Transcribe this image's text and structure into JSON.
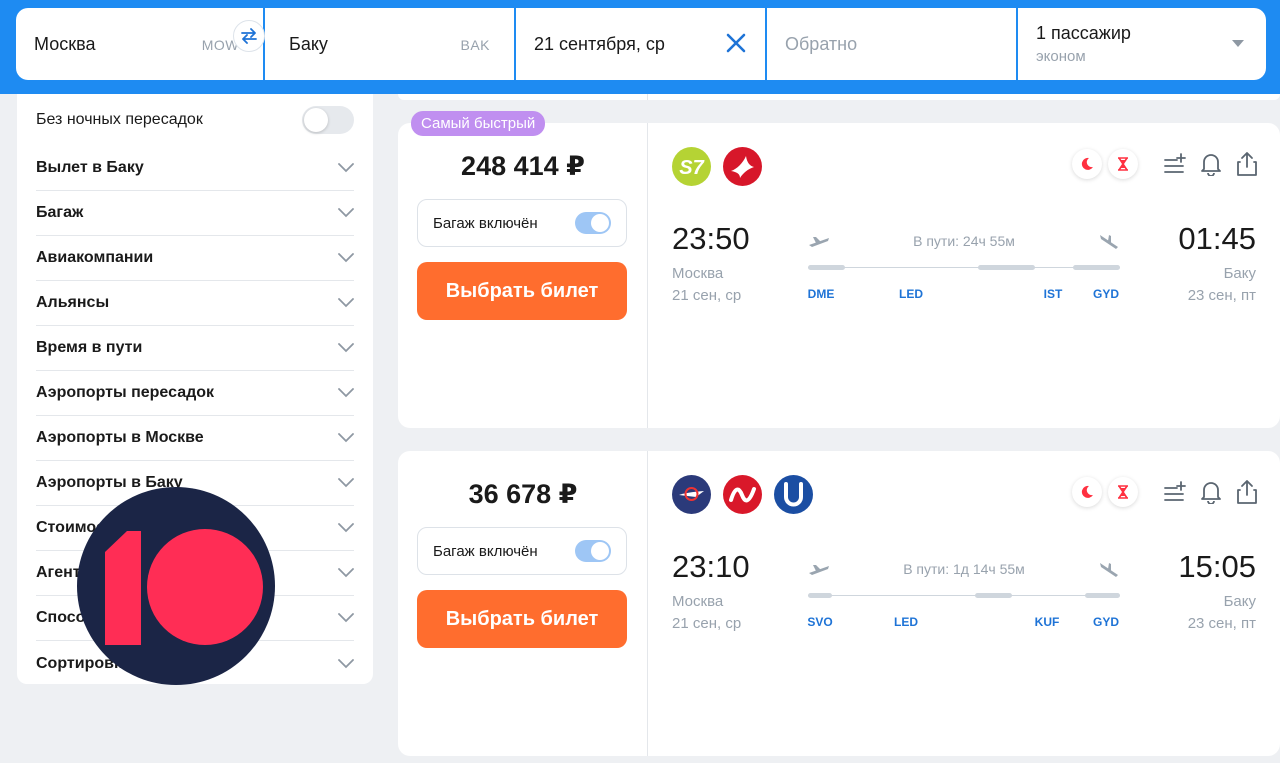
{
  "search": {
    "from_city": "Москва",
    "from_code": "MOW",
    "to_city": "Баку",
    "to_code": "BAK",
    "date": "21 сентября, ср",
    "return_placeholder": "Обратно",
    "passengers": "1 пассажир",
    "class": "эконом"
  },
  "sidebar": {
    "night_label": "Без ночных пересадок",
    "filters": [
      "Вылет в Баку",
      "Багаж",
      "Авиакомпании",
      "Альянсы",
      "Время в пути",
      "Аэропорты пересадок",
      "Аэропорты в Москве",
      "Аэропорты в Баку",
      "Стоимость",
      "Агентства",
      "Способы оплаты",
      "Сортировка"
    ]
  },
  "badge": "Самый быстрый",
  "tickets": [
    {
      "price": "248 414 ₽",
      "baggage_label": "Багаж включён",
      "button_label": "Выбрать билет",
      "airlines": [
        "s7-logo",
        "turkish-airlines-logo"
      ],
      "dep_time": "23:50",
      "dep_city": "Москва",
      "dep_date": "21 сен, ср",
      "arr_time": "01:45",
      "arr_city": "Баку",
      "arr_date": "23 сен, пт",
      "duration": "В пути: 24ч 55м",
      "airports": [
        "DME",
        "LED",
        "IST",
        "GYD"
      ]
    },
    {
      "price": "36 678 ₽",
      "baggage_label": "Багаж включён",
      "button_label": "Выбрать билет",
      "airlines": [
        "aeroflot-logo",
        "nordwind-logo",
        "utair-logo"
      ],
      "dep_time": "23:10",
      "dep_city": "Москва",
      "dep_date": "21 сен, ср",
      "arr_time": "15:05",
      "arr_city": "Баку",
      "arr_date": "23 сен, пт",
      "duration": "В пути: 1д 14ч 55м",
      "airports": [
        "SVO",
        "LED",
        "KUF",
        "GYD"
      ]
    }
  ],
  "colors": {
    "accent_blue": "#1e8bf2",
    "button_orange": "#ff6d2e",
    "badge_purple": "#c08ff0",
    "airport_blue": "#1e73d6",
    "logo_red": "#ff2d55",
    "logo_navy": "#1b2546"
  }
}
